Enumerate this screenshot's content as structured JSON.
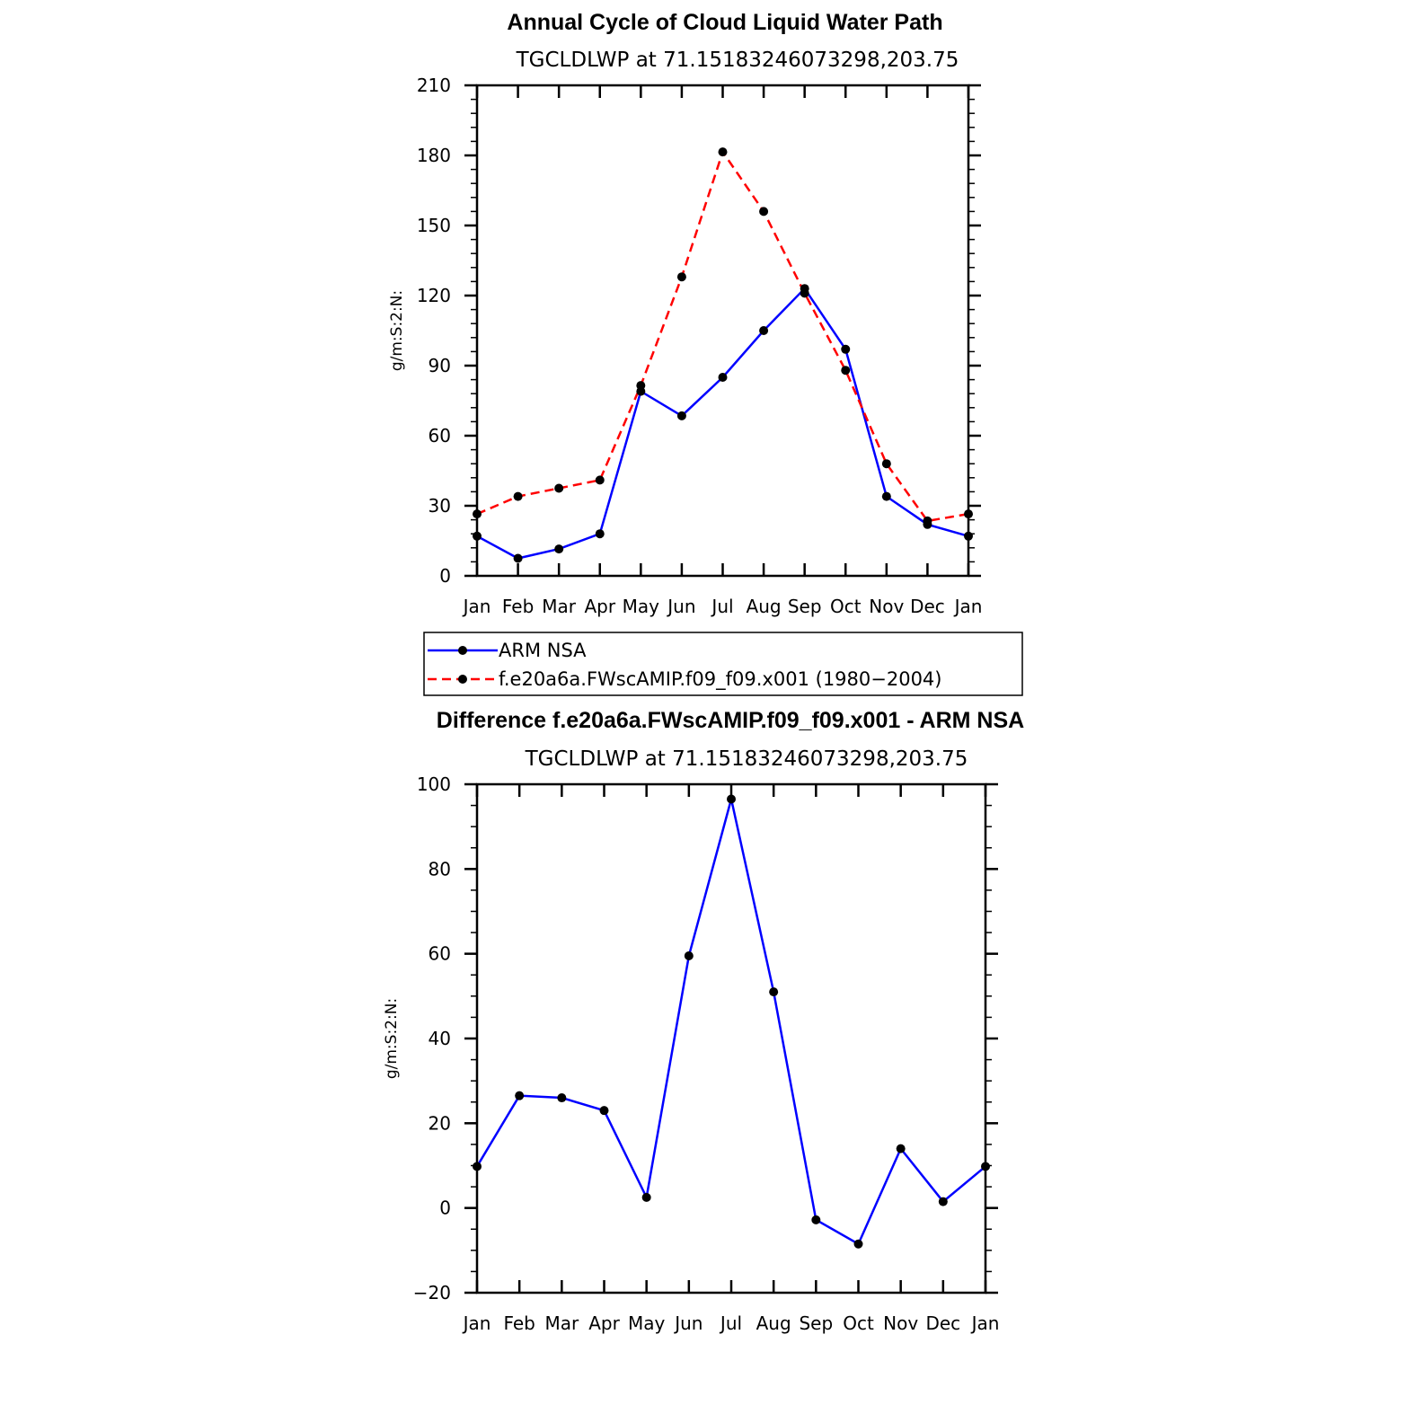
{
  "chart_data": [
    {
      "type": "line",
      "title": "Annual Cycle of Cloud Liquid Water Path",
      "subtitle": "TGCLDLWP  at  71.15183246073298,203.75",
      "xlabel": "",
      "ylabel": "g/m:S:2:N:",
      "categories": [
        "Jan",
        "Feb",
        "Mar",
        "Apr",
        "May",
        "Jun",
        "Jul",
        "Aug",
        "Sep",
        "Oct",
        "Nov",
        "Dec",
        "Jan"
      ],
      "ylim": [
        0,
        210
      ],
      "yticks": [
        "0",
        "30",
        "60",
        "90",
        "120",
        "150",
        "180",
        "210"
      ],
      "yminor_step": 6,
      "series": [
        {
          "name": "ARM  NSA",
          "color": "#0000ff",
          "dash": "solid",
          "values": [
            17,
            7.5,
            11.5,
            18,
            79,
            68.5,
            85,
            105,
            123,
            97,
            34,
            22,
            17
          ]
        },
        {
          "name": "f.e20a6a.FWscAMIP.f09_f09.x001  (1980−2004)",
          "color": "#ff0000",
          "dash": "dashed",
          "values": [
            26.5,
            34,
            37.5,
            41,
            81.5,
            128,
            181.5,
            156,
            121,
            88,
            48,
            23.5,
            26.5
          ]
        }
      ],
      "legend": {
        "placement": "below"
      }
    },
    {
      "type": "line",
      "title": "Difference f.e20a6a.FWscAMIP.f09_f09.x001 - ARM NSA",
      "subtitle": "TGCLDLWP  at  71.15183246073298,203.75",
      "xlabel": "",
      "ylabel": "g/m:S:2:N:",
      "categories": [
        "Jan",
        "Feb",
        "Mar",
        "Apr",
        "May",
        "Jun",
        "Jul",
        "Aug",
        "Sep",
        "Oct",
        "Nov",
        "Dec",
        "Jan"
      ],
      "ylim": [
        -20,
        100
      ],
      "yticks": [
        "−20",
        "0",
        "20",
        "40",
        "60",
        "80",
        "100"
      ],
      "yminor_step": 5,
      "series": [
        {
          "name": "Difference",
          "color": "#0000ff",
          "dash": "solid",
          "values": [
            9.8,
            26.5,
            26,
            23,
            2.5,
            59.5,
            96.5,
            51,
            -2.8,
            -8.5,
            14,
            1.5,
            9.8
          ]
        }
      ]
    }
  ]
}
